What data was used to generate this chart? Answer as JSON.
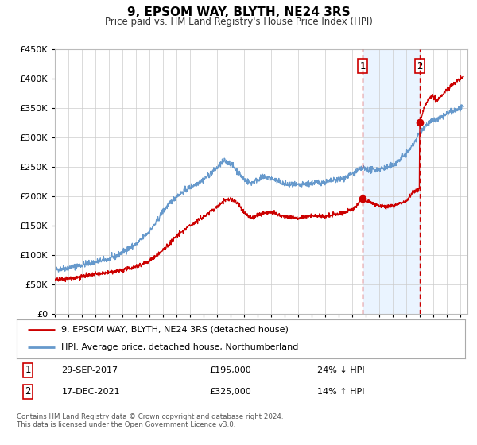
{
  "title": "9, EPSOM WAY, BLYTH, NE24 3RS",
  "subtitle": "Price paid vs. HM Land Registry's House Price Index (HPI)",
  "legend_label_red": "9, EPSOM WAY, BLYTH, NE24 3RS (detached house)",
  "legend_label_blue": "HPI: Average price, detached house, Northumberland",
  "sale1_date": "29-SEP-2017",
  "sale1_price": 195000,
  "sale1_hpi": "24% ↓ HPI",
  "sale1_label": "1",
  "sale1_year": 2017.75,
  "sale2_date": "17-DEC-2021",
  "sale2_price": 325000,
  "sale2_hpi": "14% ↑ HPI",
  "sale2_label": "2",
  "sale2_year": 2021.96,
  "footer1": "Contains HM Land Registry data © Crown copyright and database right 2024.",
  "footer2": "This data is licensed under the Open Government Licence v3.0.",
  "ymax": 450000,
  "ymin": 0,
  "xmin": 1995.0,
  "xmax": 2025.5,
  "red_color": "#cc0000",
  "blue_color": "#6699cc",
  "dashed_color": "#cc0000",
  "shade_color": "#ddeeff",
  "bg_color": "#ffffff",
  "grid_color": "#cccccc"
}
